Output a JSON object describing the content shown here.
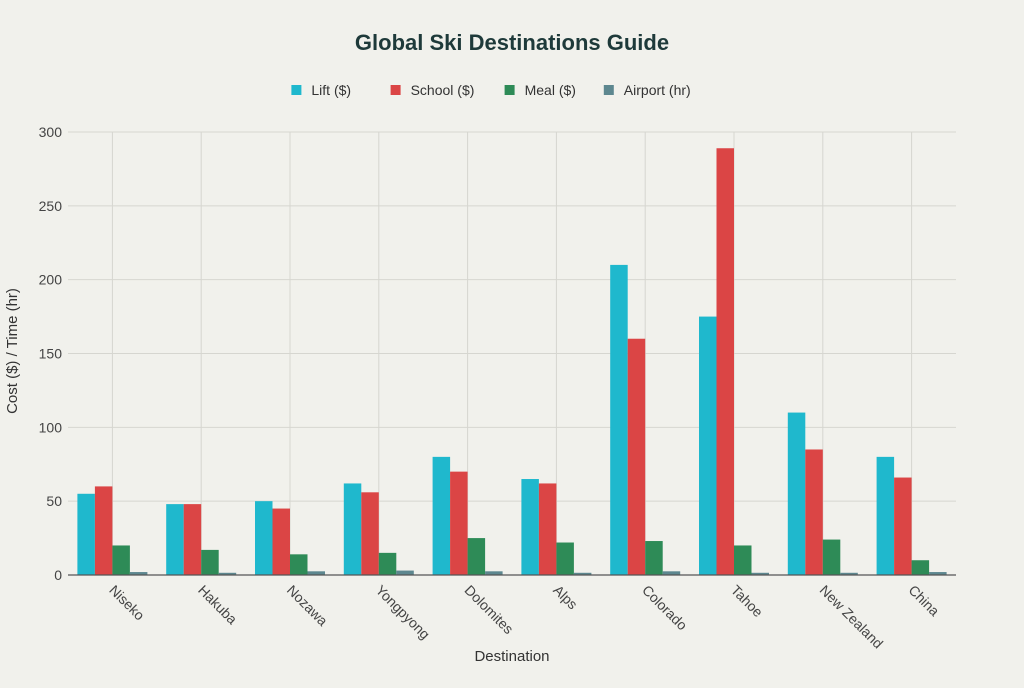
{
  "chart_data": {
    "type": "bar",
    "title": "Global Ski Destinations Guide",
    "xlabel": "Destination",
    "ylabel": "Cost ($) / Time (hr)",
    "ylim": [
      0,
      300
    ],
    "yticks": [
      0,
      50,
      100,
      150,
      200,
      250,
      300
    ],
    "grid": true,
    "legend_position": "top-center",
    "categories": [
      "Niseko",
      "Hakuba",
      "Nozawa",
      "Yongpyong",
      "Dolomites",
      "Alps",
      "Colorado",
      "Tahoe",
      "New Zealand",
      "China"
    ],
    "series": [
      {
        "name": "Lift ($)",
        "color": "#1fb8cd",
        "values": [
          55,
          48,
          50,
          62,
          80,
          65,
          210,
          175,
          110,
          80
        ]
      },
      {
        "name": "School ($)",
        "color": "#db4545",
        "values": [
          60,
          48,
          45,
          56,
          70,
          62,
          160,
          289,
          85,
          66
        ]
      },
      {
        "name": "Meal ($)",
        "color": "#2e8b57",
        "values": [
          20,
          17,
          14,
          15,
          25,
          22,
          23,
          20,
          24,
          10
        ]
      },
      {
        "name": "Airport (hr)",
        "color": "#5d878f",
        "values": [
          2,
          1.5,
          2.5,
          3,
          2.5,
          1.5,
          2.5,
          1.5,
          1.5,
          2
        ]
      }
    ]
  }
}
